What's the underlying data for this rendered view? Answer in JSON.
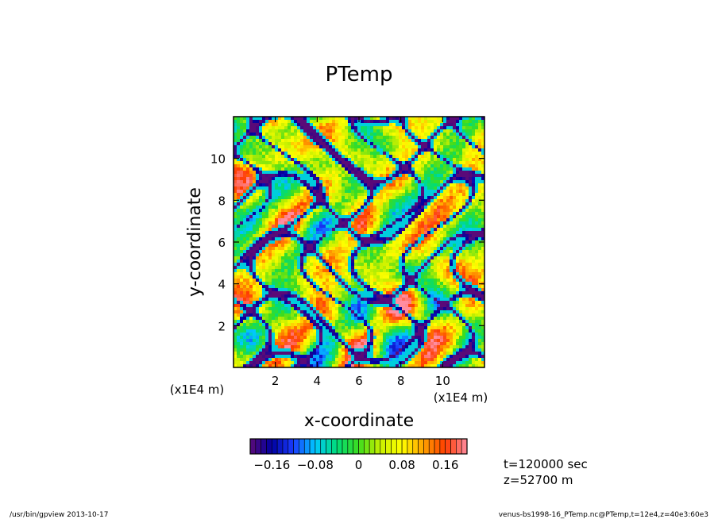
{
  "chart_data": {
    "type": "heatmap",
    "title": "PTemp",
    "xlabel": "x-coordinate",
    "ylabel": "y-coordinate",
    "xlim": [
      0,
      12
    ],
    "ylim": [
      0,
      12
    ],
    "x_ticks": [
      2,
      4,
      6,
      8,
      10
    ],
    "y_ticks": [
      2,
      4,
      6,
      8,
      10
    ],
    "x_tick_labels": [
      "2",
      "4",
      "6",
      "8",
      "10"
    ],
    "y_tick_labels": [
      "2",
      "4",
      "6",
      "8",
      "10"
    ],
    "x_unit": "(x1E4 m)",
    "y_unit": "(x1E4 m)",
    "colorbar": {
      "range": [
        -0.2,
        0.2
      ],
      "n_levels": 40,
      "tick_values": [
        -0.16,
        -0.08,
        0,
        0.08,
        0.16
      ],
      "tick_labels": [
        "−0.16",
        "−0.08",
        "0",
        "0.08",
        "0.16"
      ],
      "colors": [
        "#5a0a78",
        "#0000a0",
        "#1a3cff",
        "#00c8ff",
        "#00dc78",
        "#3cdc1e",
        "#c8f000",
        "#ffff00",
        "#ffa000",
        "#ff3c00",
        "#ff8ca0"
      ]
    },
    "annotations": [
      "t=120000 sec",
      "z=52700  m"
    ]
  },
  "footer": {
    "left": "/usr/bin/gpview   2013-10-17",
    "right": "venus-bs1998-16_PTemp.nc@PTemp,t=12e4,z=40e3:60e3"
  }
}
